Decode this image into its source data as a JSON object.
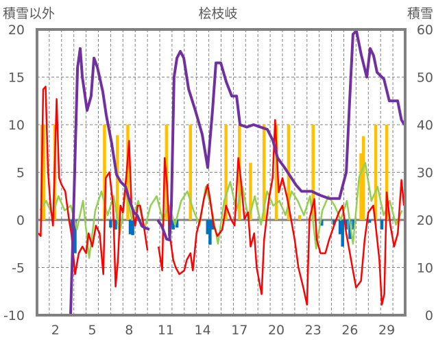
{
  "chart_data": {
    "type": "line",
    "title": "桧枝岐",
    "ylabel_left": "積雪以外",
    "ylabel_right": "積雪",
    "xlim": [
      0.5,
      30.5
    ],
    "ylim_left": [
      -10,
      20
    ],
    "ylim_right": [
      0,
      60
    ],
    "yticks_left": [
      "20",
      "15",
      "10",
      "5",
      "0",
      "-5",
      "-10"
    ],
    "yticks_right": [
      "60",
      "50",
      "40",
      "30",
      "20",
      "10",
      "0"
    ],
    "xticks": [
      "2",
      "5",
      "8",
      "11",
      "14",
      "17",
      "20",
      "23",
      "26",
      "29"
    ],
    "grid": true,
    "colors": {
      "temperature": "#ff0000",
      "wind": "#92d050",
      "snow_depth": "#7030a0",
      "precip_pos": "#ffc000",
      "precip_neg": "#0070c0",
      "axis": "#808080"
    },
    "series": [
      {
        "name": "red",
        "axis": "left",
        "points": [
          [
            0.6,
            -1.4
          ],
          [
            0.8,
            -1.7
          ],
          [
            1.0,
            13.7
          ],
          [
            1.2,
            14.0
          ],
          [
            1.4,
            5.0
          ],
          [
            1.6,
            1.5
          ],
          [
            1.8,
            -0.6
          ],
          [
            2.1,
            12.7
          ],
          [
            2.3,
            4.4
          ],
          [
            2.5,
            3.7
          ],
          [
            2.8,
            3.0
          ],
          [
            3.1,
            0.1
          ],
          [
            3.3,
            -1.4
          ],
          [
            3.6,
            -5.7
          ],
          [
            3.9,
            -3.5
          ],
          [
            4.2,
            -2.8
          ],
          [
            4.5,
            -3.5
          ],
          [
            4.7,
            -1.4
          ],
          [
            5.0,
            -2.8
          ],
          [
            5.3,
            -0.6
          ],
          [
            5.6,
            -1.4
          ],
          [
            5.9,
            -5.7
          ],
          [
            6.1,
            4.4
          ],
          [
            6.4,
            5.0
          ],
          [
            6.7,
            1.5
          ],
          [
            6.9,
            -7.0
          ],
          [
            7.1,
            -4.2
          ],
          [
            7.3,
            1.5
          ],
          [
            7.5,
            0.8
          ],
          [
            7.8,
            5.0
          ],
          [
            8.0,
            8.3
          ],
          [
            8.2,
            1.5
          ],
          [
            8.5,
            -0.6
          ],
          [
            8.7,
            1.5
          ],
          [
            8.9,
            1.5
          ],
          [
            9.2,
            -0.6
          ],
          [
            9.5,
            -3.2
          ],
          null,
          [
            10.4,
            -2.8
          ],
          [
            10.7,
            -5.3
          ],
          [
            10.9,
            6.5
          ],
          [
            11.1,
            3.7
          ],
          [
            11.3,
            -1.4
          ],
          [
            11.6,
            -4.2
          ],
          [
            11.8,
            -5.0
          ],
          [
            12.1,
            -5.7
          ],
          [
            12.5,
            -5.3
          ],
          [
            12.7,
            -4.2
          ],
          [
            13.0,
            -3.5
          ],
          [
            13.2,
            -5.3
          ],
          [
            13.5,
            -1.4
          ],
          [
            13.8,
            0.1
          ],
          [
            14.1,
            2.2
          ],
          [
            14.4,
            3.7
          ],
          [
            14.6,
            2.2
          ],
          [
            14.9,
            -0.6
          ],
          [
            15.2,
            -1.7
          ],
          [
            15.6,
            -1.0
          ],
          [
            15.9,
            1.5
          ],
          [
            16.3,
            0.1
          ],
          [
            16.6,
            -0.6
          ],
          [
            16.9,
            6.5
          ],
          [
            17.1,
            4.4
          ],
          [
            17.4,
            0.1
          ],
          [
            17.7,
            0.8
          ],
          [
            17.9,
            -2.8
          ],
          [
            18.2,
            -1.4
          ],
          [
            18.4,
            -5.0
          ],
          [
            18.8,
            -7.8
          ],
          [
            19.0,
            -2.1
          ],
          [
            19.4,
            2.2
          ],
          [
            19.7,
            4.4
          ],
          [
            19.9,
            10.5
          ],
          [
            20.2,
            2.9
          ],
          [
            20.5,
            4.4
          ],
          [
            20.9,
            2.2
          ],
          [
            21.2,
            0.1
          ],
          [
            21.5,
            -2.1
          ],
          [
            21.8,
            -5.0
          ],
          [
            22.2,
            -7.1
          ],
          [
            22.5,
            -8.9
          ],
          [
            22.7,
            0.1
          ],
          [
            23.1,
            2.2
          ],
          [
            23.3,
            -2.1
          ],
          [
            23.6,
            -3.5
          ],
          [
            24.0,
            -3.5
          ],
          [
            24.3,
            -2.1
          ],
          [
            24.7,
            -0.6
          ],
          [
            25.1,
            0.8
          ],
          [
            25.4,
            1.5
          ],
          [
            25.7,
            -1.4
          ],
          [
            26.0,
            -3.5
          ],
          [
            26.3,
            -5.7
          ],
          [
            26.5,
            -7.1
          ],
          [
            26.9,
            -6.4
          ],
          [
            27.2,
            -2.1
          ],
          [
            27.5,
            0.8
          ],
          [
            27.9,
            1.5
          ],
          [
            28.1,
            -0.6
          ],
          [
            28.4,
            -4.2
          ],
          [
            28.6,
            -8.9
          ],
          [
            28.8,
            -7.8
          ],
          [
            29.0,
            2.9
          ],
          [
            29.3,
            -0.6
          ],
          [
            29.6,
            -2.8
          ],
          [
            29.9,
            -1.4
          ],
          [
            30.2,
            4.2
          ],
          [
            30.4,
            1.5
          ]
        ]
      },
      {
        "name": "green",
        "axis": "left",
        "start": 0.75,
        "step": 0.5,
        "values": [
          1,
          2,
          0.5,
          2.5,
          1,
          1.5,
          -1,
          2,
          -4,
          1,
          3,
          0.5,
          2.5,
          -1.5,
          3,
          0,
          2,
          -1,
          1.5,
          2.5,
          0,
          1.5,
          -0.5,
          2,
          3,
          1,
          -0.5,
          3.5,
          1,
          -2.5,
          2,
          4,
          1,
          3.5,
          0,
          2.5,
          -0.5,
          3,
          1.5,
          2,
          0.5,
          3,
          2,
          0.5,
          2.5,
          -3,
          1,
          2.5,
          1.5,
          0,
          2,
          -2.5,
          4.5,
          6,
          2,
          3.5,
          0.5,
          2,
          -0.5,
          1
        ]
      },
      {
        "name": "purple",
        "axis": "right",
        "points": [
          [
            0.5,
            0
          ],
          [
            3.24,
            0
          ],
          [
            3.46,
            20
          ],
          [
            3.8,
            52
          ],
          [
            4.02,
            56
          ],
          [
            4.19,
            50
          ],
          [
            4.58,
            43
          ],
          [
            4.91,
            46
          ],
          [
            5.14,
            54
          ],
          [
            5.42,
            52
          ],
          [
            5.86,
            47
          ],
          [
            6.14,
            42
          ],
          [
            6.59,
            36
          ],
          [
            6.98,
            29.5
          ],
          [
            7.32,
            28
          ],
          [
            7.71,
            27
          ],
          [
            7.99,
            24.5
          ],
          [
            8.38,
            21.6
          ],
          [
            8.66,
            21
          ],
          [
            9.05,
            18.7
          ],
          [
            9.33,
            18.3
          ],
          [
            9.66,
            18
          ],
          null,
          [
            10.33,
            20
          ],
          [
            10.67,
            18.7
          ],
          [
            11.06,
            16
          ],
          [
            11.3,
            15.8
          ],
          [
            11.45,
            23
          ],
          [
            11.67,
            50
          ],
          [
            11.9,
            54
          ],
          [
            12.18,
            55.4
          ],
          [
            12.46,
            54
          ],
          [
            12.85,
            47.5
          ],
          [
            13.4,
            43
          ],
          [
            13.96,
            38
          ],
          [
            14.41,
            31
          ],
          [
            14.8,
            43
          ],
          [
            15.08,
            53
          ],
          [
            15.47,
            53
          ],
          [
            15.92,
            49
          ],
          [
            16.37,
            46
          ],
          [
            16.76,
            46
          ],
          [
            17.04,
            40
          ],
          [
            17.59,
            39.5
          ],
          [
            18.15,
            40
          ],
          [
            18.71,
            39.5
          ],
          [
            19.27,
            39
          ],
          [
            19.72,
            36.7
          ],
          [
            20.11,
            33
          ],
          [
            20.67,
            31
          ],
          [
            21.23,
            28.8
          ],
          [
            21.62,
            27.3
          ],
          [
            22.06,
            26
          ],
          [
            22.9,
            26
          ],
          [
            23.46,
            25.3
          ],
          [
            24.3,
            24.5
          ],
          [
            25.14,
            24.5
          ],
          [
            25.42,
            27.3
          ],
          [
            25.7,
            30
          ],
          [
            25.97,
            44.6
          ],
          [
            26.25,
            59
          ],
          [
            26.53,
            59.7
          ],
          [
            26.92,
            54.7
          ],
          [
            27.37,
            50
          ],
          [
            27.65,
            56
          ],
          [
            27.93,
            54.5
          ],
          [
            28.21,
            51
          ],
          [
            28.77,
            49.6
          ],
          [
            29.21,
            45
          ],
          [
            29.89,
            45
          ],
          [
            30.2,
            41
          ],
          [
            30.44,
            40
          ]
        ]
      }
    ],
    "bars_positive": [
      [
        0.9,
        10
      ],
      [
        1.06,
        10
      ],
      [
        1.95,
        10
      ],
      [
        6.0,
        10
      ],
      [
        7.05,
        8.9
      ],
      [
        7.9,
        10
      ],
      [
        11.05,
        10
      ],
      [
        13.0,
        10
      ],
      [
        15.9,
        10
      ],
      [
        17.0,
        10
      ],
      [
        17.9,
        6
      ],
      [
        19.0,
        10
      ],
      [
        20.0,
        10
      ],
      [
        21.0,
        10
      ],
      [
        21.9,
        0.5
      ],
      [
        23.0,
        10
      ],
      [
        26.9,
        7
      ],
      [
        27.1,
        8.8
      ],
      [
        28.1,
        10
      ],
      [
        29.0,
        10
      ]
    ],
    "bars_negative": [
      [
        3.35,
        -1.5
      ],
      [
        3.6,
        -3.5
      ],
      [
        6.5,
        -0.8
      ],
      [
        6.9,
        -1
      ],
      [
        8.1,
        -1.5
      ],
      [
        8.3,
        -1.6
      ],
      [
        11.3,
        -1.7
      ],
      [
        11.6,
        -1.0
      ],
      [
        11.9,
        -0.8
      ],
      [
        14.4,
        -1.5
      ],
      [
        14.6,
        -2.6
      ],
      [
        14.8,
        -1.0
      ],
      [
        23.7,
        -0.6
      ],
      [
        24.7,
        -0.5
      ],
      [
        25.2,
        -1.5
      ],
      [
        25.4,
        -2.8
      ],
      [
        25.7,
        -1.0
      ],
      [
        26.0,
        -2.0
      ],
      [
        26.3,
        -1.0
      ],
      [
        27.6,
        -0.3
      ],
      [
        28.6,
        -1.0
      ]
    ]
  }
}
